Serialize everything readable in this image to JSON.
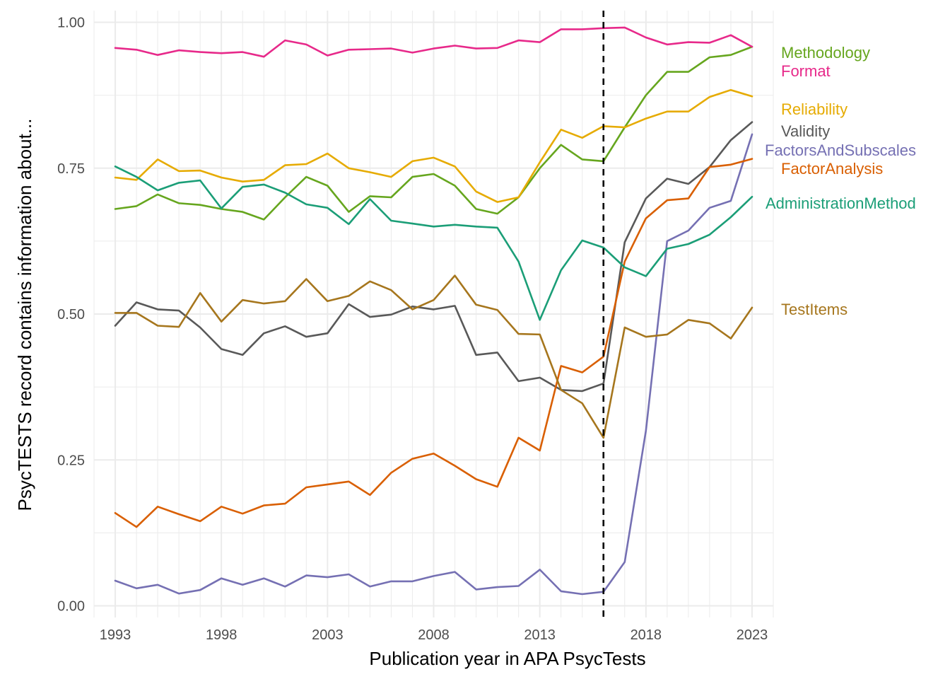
{
  "chart_data": {
    "type": "line",
    "title": "",
    "xlabel": "Publication year in APA PsycTests",
    "ylabel": "PsycTESTS record contains information about...",
    "x": [
      1993,
      1994,
      1995,
      1996,
      1997,
      1998,
      1999,
      2000,
      2001,
      2002,
      2003,
      2004,
      2005,
      2006,
      2007,
      2008,
      2009,
      2010,
      2011,
      2012,
      2013,
      2014,
      2015,
      2016,
      2017,
      2018,
      2019,
      2020,
      2021,
      2022,
      2023
    ],
    "xlim": [
      1992,
      2024
    ],
    "ylim": [
      -0.02,
      1.02
    ],
    "x_ticks": [
      1993,
      1998,
      2003,
      2008,
      2013,
      2018,
      2023
    ],
    "x_tick_labels": [
      "1993",
      "1998",
      "2003",
      "2008",
      "2013",
      "2018",
      "2023"
    ],
    "y_ticks": [
      0,
      0.25,
      0.5,
      0.75,
      1
    ],
    "y_tick_labels": [
      "0.00",
      "0.25",
      "0.50",
      "0.75",
      "1.00"
    ],
    "vline": {
      "x": 2016,
      "style": "dashed"
    },
    "grid": true,
    "legend": "direct labels at right",
    "series": [
      {
        "name": "Methodology",
        "color": "#66a61e",
        "values": [
          0.68,
          0.685,
          0.705,
          0.69,
          0.687,
          0.68,
          0.675,
          0.662,
          0.7,
          0.735,
          0.72,
          0.675,
          0.702,
          0.7,
          0.735,
          0.74,
          0.72,
          0.68,
          0.672,
          0.7,
          0.75,
          0.79,
          0.765,
          0.762,
          0.82,
          0.875,
          0.915,
          0.915,
          0.94,
          0.944,
          0.958
        ]
      },
      {
        "name": "Format",
        "color": "#e7298a",
        "values": [
          0.956,
          0.953,
          0.944,
          0.952,
          0.949,
          0.947,
          0.949,
          0.941,
          0.969,
          0.962,
          0.943,
          0.953,
          0.954,
          0.955,
          0.948,
          0.955,
          0.96,
          0.955,
          0.956,
          0.969,
          0.966,
          0.988,
          0.988,
          0.99,
          0.991,
          0.974,
          0.962,
          0.966,
          0.965,
          0.978,
          0.958
        ]
      },
      {
        "name": "Reliability",
        "color": "#e6ab02",
        "values": [
          0.734,
          0.73,
          0.765,
          0.745,
          0.746,
          0.734,
          0.727,
          0.73,
          0.755,
          0.757,
          0.775,
          0.75,
          0.743,
          0.735,
          0.762,
          0.768,
          0.753,
          0.71,
          0.692,
          0.7,
          0.76,
          0.816,
          0.802,
          0.822,
          0.82,
          0.835,
          0.847,
          0.847,
          0.872,
          0.884,
          0.873
        ]
      },
      {
        "name": "Validity",
        "color": "#595959",
        "values": [
          0.48,
          0.52,
          0.508,
          0.506,
          0.477,
          0.44,
          0.43,
          0.467,
          0.479,
          0.461,
          0.467,
          0.517,
          0.495,
          0.499,
          0.513,
          0.508,
          0.514,
          0.43,
          0.434,
          0.385,
          0.391,
          0.37,
          0.368,
          0.381,
          0.623,
          0.698,
          0.732,
          0.723,
          0.752,
          0.798,
          0.829
        ]
      },
      {
        "name": "FactorsAndSubscales",
        "color": "#7570b3",
        "values": [
          0.043,
          0.03,
          0.036,
          0.021,
          0.027,
          0.047,
          0.036,
          0.047,
          0.033,
          0.052,
          0.049,
          0.054,
          0.033,
          0.042,
          0.042,
          0.051,
          0.058,
          0.028,
          0.032,
          0.034,
          0.062,
          0.025,
          0.02,
          0.024,
          0.075,
          0.3,
          0.625,
          0.643,
          0.682,
          0.694,
          0.808
        ]
      },
      {
        "name": "FactorAnalysis",
        "color": "#d95f02",
        "values": [
          0.159,
          0.135,
          0.17,
          0.157,
          0.145,
          0.17,
          0.158,
          0.172,
          0.175,
          0.203,
          0.208,
          0.213,
          0.19,
          0.228,
          0.252,
          0.261,
          0.24,
          0.217,
          0.204,
          0.288,
          0.266,
          0.411,
          0.4,
          0.427,
          0.59,
          0.664,
          0.695,
          0.698,
          0.752,
          0.756,
          0.766
        ]
      },
      {
        "name": "AdministrationMethod",
        "color": "#1b9e77",
        "values": [
          0.753,
          0.735,
          0.712,
          0.725,
          0.729,
          0.681,
          0.718,
          0.722,
          0.708,
          0.688,
          0.682,
          0.654,
          0.697,
          0.66,
          0.655,
          0.65,
          0.653,
          0.65,
          0.648,
          0.59,
          0.49,
          0.575,
          0.626,
          0.614,
          0.58,
          0.565,
          0.612,
          0.62,
          0.636,
          0.666,
          0.701
        ]
      },
      {
        "name": "TestItems",
        "color": "#a6761d",
        "values": [
          0.502,
          0.502,
          0.48,
          0.478,
          0.536,
          0.487,
          0.524,
          0.518,
          0.522,
          0.56,
          0.522,
          0.531,
          0.556,
          0.541,
          0.508,
          0.524,
          0.566,
          0.516,
          0.507,
          0.466,
          0.465,
          0.37,
          0.347,
          0.288,
          0.477,
          0.461,
          0.465,
          0.49,
          0.484,
          0.458,
          0.511
        ]
      }
    ],
    "labels": [
      "Methodology",
      "Format",
      "Reliability",
      "Validity",
      "FactorsAndSubscales",
      "FactorAnalysis",
      "AdministrationMethod",
      "TestItems"
    ]
  }
}
